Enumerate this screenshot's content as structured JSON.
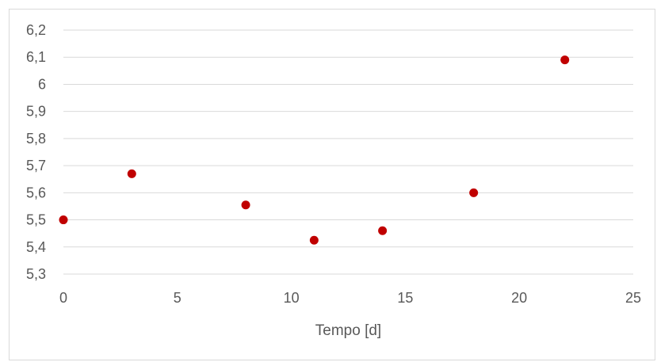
{
  "chart_data": {
    "type": "scatter",
    "title": "",
    "xlabel": "Tempo [d]",
    "ylabel": "",
    "xlim": [
      0,
      25
    ],
    "ylim": [
      5.3,
      6.2
    ],
    "x_ticks": [
      0,
      5,
      10,
      15,
      20,
      25
    ],
    "x_tick_labels": [
      "0",
      "5",
      "10",
      "15",
      "20",
      "25"
    ],
    "y_ticks": [
      5.3,
      5.4,
      5.5,
      5.6,
      5.7,
      5.8,
      5.9,
      6.0,
      6.1,
      6.2
    ],
    "y_tick_labels": [
      "5,3",
      "5,4",
      "5,5",
      "5,6",
      "5,7",
      "5,8",
      "5,9",
      "6",
      "6,1",
      "6,2"
    ],
    "grid": "horizontal",
    "legend": "none",
    "marker_color": "#c00000",
    "series": [
      {
        "x": [
          0,
          3,
          8,
          11,
          14,
          18,
          22
        ],
        "y": [
          5.5,
          5.67,
          5.555,
          5.425,
          5.46,
          5.6,
          6.09
        ]
      }
    ]
  }
}
